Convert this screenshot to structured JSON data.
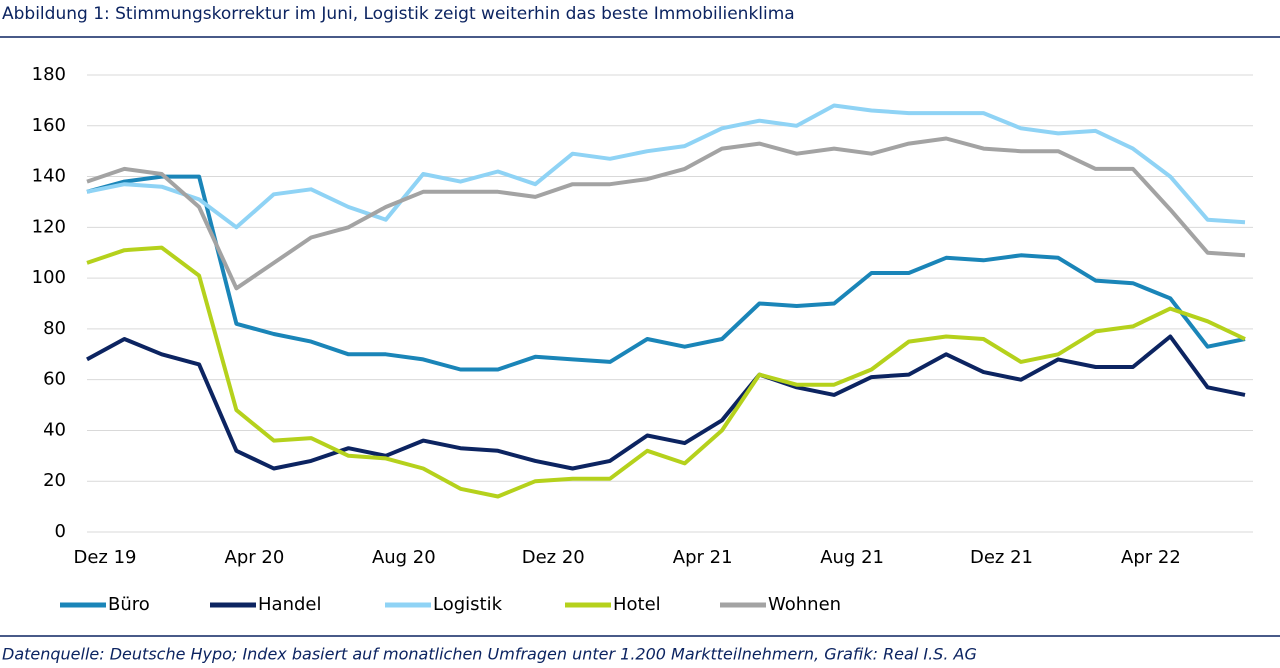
{
  "chart_data": {
    "type": "line",
    "title": "Abbildung 1: Stimmungskorrektur im Juni, Logistik zeigt weiterhin das beste Immobilienklima",
    "source": "Datenquelle: Deutsche Hypo; Index basiert auf monatlichen Umfragen unter 1.200 Marktteilnehmern, Grafik: Real I.S. AG",
    "categories": [
      "Dez 19",
      null,
      null,
      null,
      "Apr 20",
      null,
      null,
      null,
      "Aug 20",
      null,
      null,
      null,
      "Dez 20",
      null,
      null,
      null,
      "Apr 21",
      null,
      null,
      null,
      "Aug 21",
      null,
      null,
      null,
      "Dez 21",
      null,
      null,
      null,
      "Apr 22",
      null,
      null,
      null
    ],
    "series": [
      {
        "name": "Büro",
        "color": "#1a85b8",
        "values": [
          134,
          138,
          140,
          140,
          82,
          78,
          75,
          70,
          70,
          68,
          64,
          64,
          69,
          68,
          67,
          76,
          73,
          76,
          90,
          89,
          90,
          102,
          102,
          108,
          107,
          109,
          108,
          99,
          98,
          92,
          73,
          76
        ]
      },
      {
        "name": "Handel",
        "color": "#0c2461",
        "values": [
          68,
          76,
          70,
          66,
          32,
          25,
          28,
          33,
          30,
          36,
          33,
          32,
          28,
          25,
          28,
          38,
          35,
          44,
          62,
          57,
          54,
          61,
          62,
          70,
          63,
          60,
          68,
          65,
          65,
          77,
          57,
          54
        ]
      },
      {
        "name": "Logistik",
        "color": "#8fd3f5",
        "values": [
          134,
          137,
          136,
          131,
          120,
          133,
          135,
          128,
          123,
          141,
          138,
          142,
          137,
          149,
          147,
          150,
          152,
          159,
          162,
          160,
          168,
          166,
          165,
          165,
          165,
          159,
          157,
          158,
          151,
          140,
          123,
          122
        ]
      },
      {
        "name": "Hotel",
        "color": "#b5d11c",
        "values": [
          106,
          111,
          112,
          101,
          48,
          36,
          37,
          30,
          29,
          25,
          17,
          14,
          20,
          21,
          21,
          32,
          27,
          40,
          62,
          58,
          58,
          64,
          75,
          77,
          76,
          67,
          70,
          79,
          81,
          88,
          83,
          76
        ]
      },
      {
        "name": "Wohnen",
        "color": "#a3a3a3",
        "values": [
          138,
          143,
          141,
          128,
          96,
          106,
          116,
          120,
          128,
          134,
          134,
          134,
          132,
          137,
          137,
          139,
          143,
          151,
          153,
          149,
          151,
          149,
          153,
          155,
          151,
          150,
          150,
          143,
          143,
          127,
          110,
          109
        ]
      }
    ],
    "ylim": [
      0,
      180
    ],
    "yticks": [
      0,
      20,
      40,
      60,
      80,
      100,
      120,
      140,
      160,
      180
    ],
    "grid": true,
    "legend": "bottom"
  }
}
